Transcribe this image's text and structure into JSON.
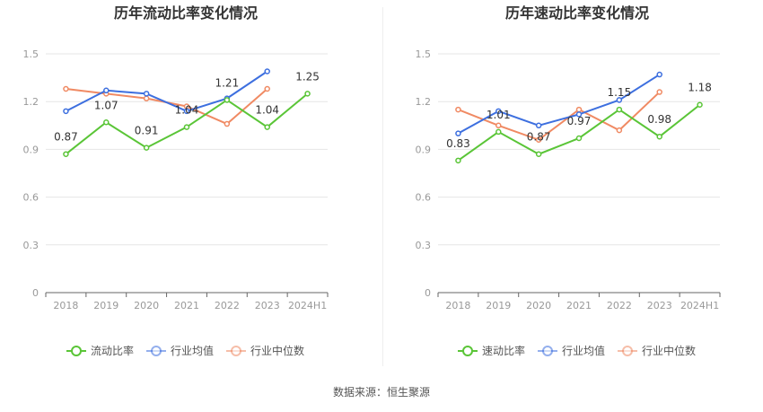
{
  "source_label": "数据来源：恒生聚源",
  "colors": {
    "ratio": "#5ac537",
    "avg": "#3d6fdf",
    "median": "#f08a63",
    "grid": "#e6e6e6",
    "axis": "#999999",
    "text": "#333333"
  },
  "chart_data": [
    {
      "type": "line",
      "title": "历年流动比率变化情况",
      "categories": [
        "2018",
        "2019",
        "2020",
        "2021",
        "2022",
        "2023",
        "2024H1"
      ],
      "yticks": [
        "0",
        "0.3",
        "0.6",
        "0.9",
        "1.2",
        "1.5"
      ],
      "ylim": [
        0,
        1.5
      ],
      "grid": true,
      "legend_position": "bottom",
      "series": [
        {
          "name": "流动比率",
          "key": "ratio",
          "values": [
            0.87,
            1.07,
            0.91,
            1.04,
            1.21,
            1.04,
            1.25
          ],
          "labels": [
            "0.87",
            "1.07",
            "0.91",
            "1.04",
            "1.21",
            "1.04",
            "1.25"
          ]
        },
        {
          "name": "行业均值",
          "key": "avg",
          "values": [
            1.14,
            1.27,
            1.25,
            1.14,
            1.22,
            1.39,
            null
          ]
        },
        {
          "name": "行业中位数",
          "key": "median",
          "values": [
            1.28,
            1.25,
            1.22,
            1.17,
            1.06,
            1.28,
            null
          ]
        }
      ]
    },
    {
      "type": "line",
      "title": "历年速动比率变化情况",
      "categories": [
        "2018",
        "2019",
        "2020",
        "2021",
        "2022",
        "2023",
        "2024H1"
      ],
      "yticks": [
        "0",
        "0.3",
        "0.6",
        "0.9",
        "1.2",
        "1.5"
      ],
      "ylim": [
        0,
        1.5
      ],
      "grid": true,
      "legend_position": "bottom",
      "series": [
        {
          "name": "速动比率",
          "key": "ratio",
          "values": [
            0.83,
            1.01,
            0.87,
            0.97,
            1.15,
            0.98,
            1.18
          ],
          "labels": [
            "0.83",
            "1.01",
            "0.87",
            "0.97",
            "1.15",
            "0.98",
            "1.18"
          ]
        },
        {
          "name": "行业均值",
          "key": "avg",
          "values": [
            1.0,
            1.14,
            1.05,
            1.12,
            1.21,
            1.37,
            null
          ]
        },
        {
          "name": "行业中位数",
          "key": "median",
          "values": [
            1.15,
            1.05,
            0.96,
            1.15,
            1.02,
            1.26,
            null
          ]
        }
      ]
    }
  ]
}
